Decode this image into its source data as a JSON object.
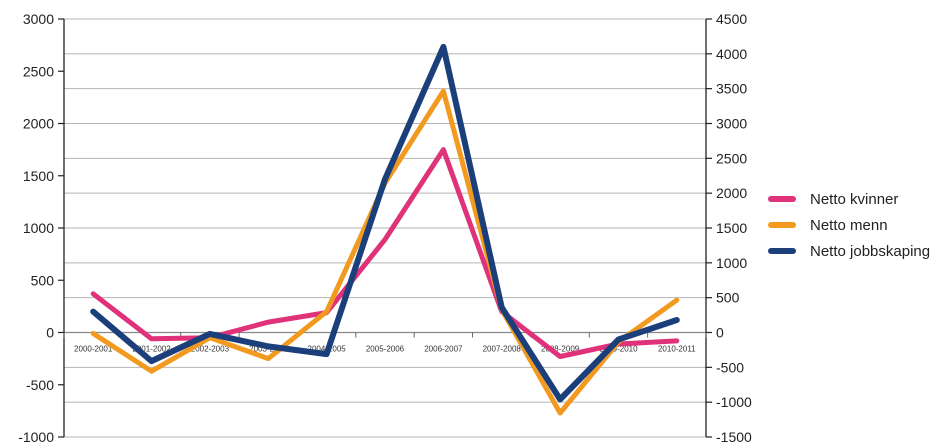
{
  "chart_data": {
    "type": "line",
    "categories": [
      "2000-2001",
      "2001-2002",
      "2002-2003",
      "2003-2004",
      "2004-2005",
      "2005-2006",
      "2006-2007",
      "2007-2008",
      "2008-2009",
      "2009-2010",
      "2010-2011"
    ],
    "y_left": {
      "ylim": [
        -1000,
        3000
      ],
      "ticks": [
        "3000",
        "2500",
        "2000",
        "1500",
        "1000",
        "500",
        "0",
        "-500",
        "-1000"
      ]
    },
    "y_right": {
      "ylim": [
        -1500,
        4500
      ],
      "ticks": [
        "4500",
        "4000",
        "3500",
        "3000",
        "2500",
        "2000",
        "1500",
        "1000",
        "500",
        "0",
        "-500",
        "-1000",
        "-1500"
      ]
    },
    "series": [
      {
        "name": "Netto kvinner",
        "axis": "left",
        "color": "#e0327a",
        "values": [
          370,
          -60,
          -50,
          100,
          190,
          890,
          1750,
          200,
          -230,
          -110,
          -80
        ]
      },
      {
        "name": "Netto menn",
        "axis": "left",
        "color": "#f29a1f",
        "values": [
          -10,
          -370,
          -50,
          -250,
          200,
          1430,
          2310,
          220,
          -770,
          -90,
          310
        ]
      },
      {
        "name": "Netto jobbskaping",
        "axis": "right",
        "color": "#1b3f7a",
        "values": [
          300,
          -410,
          -20,
          -200,
          -310,
          2200,
          4100,
          360,
          -960,
          -100,
          180
        ]
      }
    ],
    "grid": true,
    "legend_position": "right"
  }
}
